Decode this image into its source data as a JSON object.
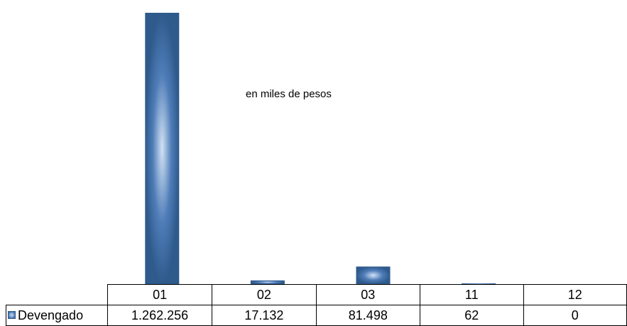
{
  "chart_data": {
    "type": "bar",
    "categories": [
      "01",
      "02",
      "03",
      "11",
      "12"
    ],
    "series": [
      {
        "name": "Devengado",
        "values": [
          1262256,
          17132,
          81498,
          62,
          0
        ]
      }
    ],
    "value_labels": [
      "1.262.256",
      "17.132",
      "81.498",
      "62",
      "0"
    ],
    "annotation": "en miles de pesos",
    "title": "",
    "xlabel": "",
    "ylabel": "",
    "ylim": [
      0,
      1262256
    ],
    "grid": false,
    "legend": "data-table",
    "colors": {
      "bar_edge": "#2e5a8c",
      "bar_mid": "#4f7db8",
      "bar_center": "#d2e2f4"
    }
  }
}
